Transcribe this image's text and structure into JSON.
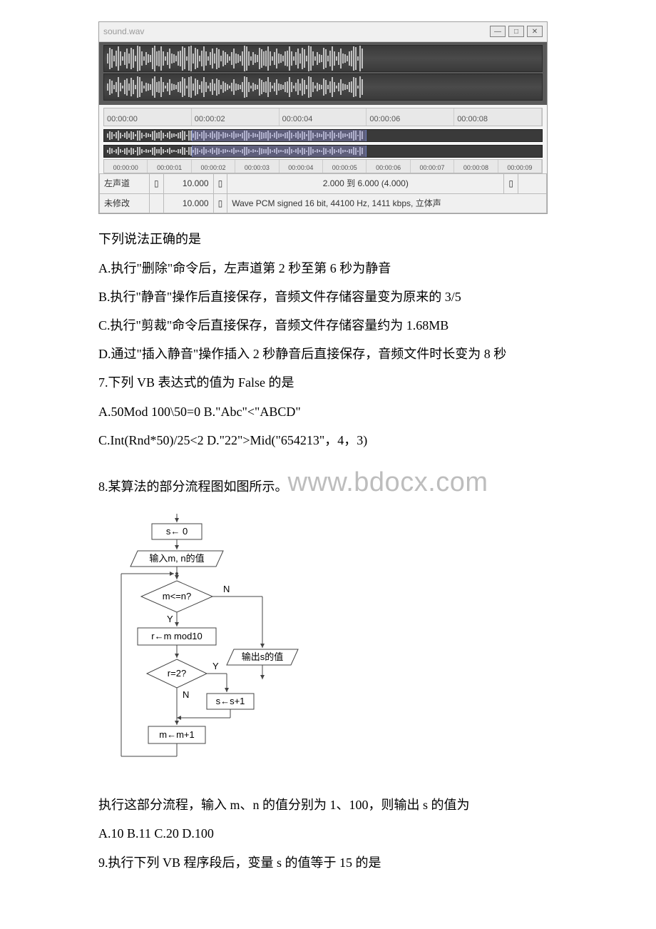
{
  "audio": {
    "title": "sound.wav",
    "ruler_main": [
      "00:00:00",
      "00:00:02",
      "00:00:04",
      "00:00:06",
      "00:00:08"
    ],
    "ruler_fine": [
      "00:00:00",
      "00:00:01",
      "00:00:02",
      "00:00:03",
      "00:00:04",
      "00:00:05",
      "00:00:06",
      "00:00:07",
      "00:00:08",
      "00:00:09"
    ],
    "status": {
      "row1c1": "左声道",
      "row1c2": "10.000",
      "row1c3": "2.000 到 6.000 (4.000)",
      "row2c1": "未修改",
      "row2c2": "10.000",
      "row2c3": "Wave PCM signed 16 bit, 44100 Hz, 1411 kbps, 立体声"
    },
    "selection": {
      "left_pct": 20,
      "width_pct": 40
    },
    "waveform": {
      "fg": "#c0c0c0",
      "heights1": [
        14,
        30,
        26,
        8,
        22,
        34,
        20,
        6,
        18,
        28,
        14,
        30,
        26,
        8,
        36,
        34,
        20,
        6,
        18,
        12,
        10,
        30,
        36,
        20,
        22,
        34,
        20,
        6,
        18,
        28,
        14,
        12,
        8,
        20,
        22,
        34,
        30,
        6,
        34,
        36,
        14,
        30,
        26,
        8,
        22,
        34,
        20,
        6,
        18,
        28,
        14,
        30,
        26,
        8,
        22,
        18,
        12,
        6,
        18,
        28,
        14,
        12,
        8,
        20,
        36,
        34,
        20,
        6,
        18,
        12,
        10,
        30,
        26,
        20,
        22,
        34,
        20,
        6,
        18,
        28,
        14,
        12,
        8,
        20,
        22,
        34,
        20,
        6,
        18,
        28,
        14,
        30,
        26,
        8,
        36,
        34,
        20,
        6,
        18,
        12,
        10,
        30,
        26,
        8,
        22,
        34,
        20,
        6,
        18,
        28,
        14,
        12,
        8,
        20,
        22,
        34,
        32,
        6,
        36,
        28
      ],
      "heights2": [
        10,
        22,
        18,
        6,
        14,
        28,
        12,
        4,
        20,
        24,
        10,
        26,
        20,
        6,
        30,
        28,
        16,
        4,
        12,
        10,
        8,
        24,
        30,
        14,
        16,
        28,
        14,
        4,
        12,
        22,
        10,
        8,
        6,
        14,
        16,
        28,
        24,
        4,
        28,
        30,
        10,
        24,
        20,
        6,
        16,
        28,
        14,
        4,
        12,
        22,
        10,
        24,
        20,
        6,
        16,
        12,
        8,
        4,
        12,
        22,
        10,
        8,
        6,
        14,
        30,
        28,
        14,
        4,
        12,
        8,
        6,
        24,
        20,
        14,
        16,
        28,
        14,
        4,
        12,
        22,
        10,
        8,
        6,
        14,
        16,
        28,
        14,
        4,
        12,
        22,
        10,
        24,
        20,
        6,
        30,
        28,
        14,
        4,
        12,
        8,
        6,
        24,
        20,
        6,
        16,
        28,
        14,
        4,
        12,
        22,
        10,
        8,
        6,
        14,
        16,
        28,
        26,
        4,
        30,
        22
      ]
    }
  },
  "q6": {
    "intro": "下列说法正确的是",
    "a": "A.执行\"删除\"命令后，左声道第 2 秒至第 6 秒为静音",
    "b": "B.执行\"静音\"操作后直接保存，音频文件存储容量变为原来的 3/5",
    "c": "C.执行\"剪裁\"命令后直接保存，音频文件存储容量约为 1.68MB",
    "d": "D.通过\"插入静音\"操作插入 2 秒静音后直接保存，音频文件时长变为 8 秒"
  },
  "q7": {
    "text": "7.下列 VB 表达式的值为 False 的是",
    "ab": "A.50Mod 100\\50=0 B.\"Abc\"<\"ABCD\"",
    "cd": "C.Int(Rnd*50)/25<2 D.\"22\">Mid(\"654213\"，4，3)"
  },
  "q8": {
    "text": "8.某算法的部分流程图如图所示。",
    "watermark": "www.bdocx.com",
    "flow": {
      "s_init": "s← 0",
      "input": "输入m, n的值",
      "cond1": "m<=n?",
      "yes": "Y",
      "no": "N",
      "assign_r": "r←m mod10",
      "output": "输出s的值",
      "cond2": "r=2?",
      "assign_s": "s←s+1",
      "assign_m": "m←m+1"
    },
    "post": "执行这部分流程，输入 m、n 的值分别为 1、100，则输出 s 的值为",
    "opts": "A.10 B.11 C.20 D.100"
  },
  "q9": {
    "text": "9.执行下列 VB 程序段后，变量 s 的值等于 15 的是"
  }
}
